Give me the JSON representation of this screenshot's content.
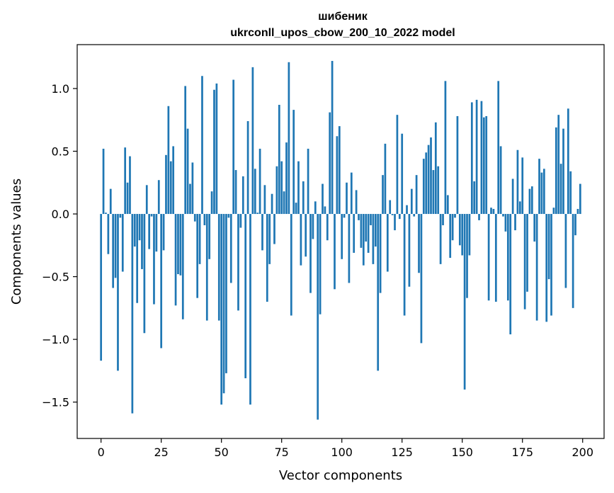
{
  "chart_data": {
    "type": "bar",
    "title_line1": "шибеник",
    "title_line2": "ukrconll_upos_cbow_200_10_2022 model",
    "xlabel": "Vector components",
    "ylabel": "Components values",
    "xlim": [
      -9.9,
      208.9
    ],
    "ylim": [
      -1.79,
      1.35
    ],
    "xticks": [
      0,
      25,
      50,
      75,
      100,
      125,
      150,
      175,
      200
    ],
    "xtick_labels": [
      "0",
      "25",
      "50",
      "75",
      "100",
      "125",
      "150",
      "175",
      "200"
    ],
    "yticks": [
      1.0,
      0.5,
      0.0,
      -0.5,
      -1.0,
      -1.5
    ],
    "ytick_labels": [
      "1.0",
      "0.5",
      "0.0",
      "−0.5",
      "−1.0",
      "−1.5"
    ],
    "bar_color": "#1f77b4",
    "bar_width": 0.8,
    "values": [
      -1.17,
      0.52,
      0.01,
      -0.32,
      0.2,
      -0.59,
      -0.51,
      -1.25,
      -0.03,
      -0.46,
      0.53,
      0.25,
      0.46,
      -1.59,
      -0.26,
      -0.71,
      -0.21,
      -0.44,
      -0.95,
      0.23,
      -0.28,
      -0.02,
      -0.72,
      -0.3,
      0.27,
      -1.07,
      -0.29,
      0.47,
      0.86,
      0.42,
      0.54,
      -0.73,
      -0.48,
      -0.49,
      -0.84,
      1.02,
      0.68,
      0.24,
      0.41,
      -0.06,
      -0.67,
      -0.4,
      1.1,
      -0.09,
      -0.85,
      -0.36,
      0.18,
      0.99,
      1.04,
      -0.85,
      -1.52,
      -1.43,
      -1.27,
      -0.03,
      -0.55,
      1.07,
      0.35,
      -0.77,
      -0.11,
      0.3,
      -1.31,
      0.74,
      -1.52,
      1.17,
      0.36,
      0.01,
      0.52,
      -0.29,
      0.23,
      -0.7,
      -0.4,
      0.16,
      -0.24,
      0.38,
      0.87,
      0.42,
      0.18,
      0.57,
      1.21,
      -0.81,
      0.83,
      0.09,
      0.42,
      -0.41,
      0.26,
      -0.34,
      0.52,
      -0.63,
      -0.2,
      0.1,
      -1.64,
      -0.8,
      0.24,
      0.06,
      -0.21,
      0.81,
      1.22,
      -0.6,
      0.62,
      0.7,
      -0.36,
      -0.03,
      0.25,
      -0.55,
      0.33,
      -0.31,
      0.19,
      -0.05,
      -0.27,
      -0.41,
      -0.22,
      -0.31,
      -0.09,
      -0.4,
      -0.26,
      -1.25,
      -0.63,
      0.31,
      0.56,
      -0.46,
      0.11,
      -0.01,
      -0.13,
      0.79,
      -0.04,
      0.64,
      -0.81,
      0.07,
      -0.58,
      0.2,
      -0.02,
      0.31,
      -0.47,
      -1.03,
      0.44,
      0.49,
      0.55,
      0.61,
      0.35,
      0.73,
      0.38,
      -0.4,
      -0.09,
      1.06,
      0.15,
      -0.35,
      -0.21,
      -0.03,
      0.78,
      -0.25,
      -0.33,
      -1.4,
      -0.67,
      -0.33,
      0.89,
      0.26,
      0.91,
      -0.05,
      0.9,
      0.77,
      0.78,
      -0.69,
      0.05,
      0.04,
      -0.7,
      1.06,
      0.54,
      -0.02,
      -0.14,
      -0.69,
      -0.96,
      0.28,
      -0.13,
      0.51,
      0.1,
      0.45,
      -0.76,
      -0.62,
      0.2,
      0.22,
      -0.22,
      -0.85,
      0.44,
      0.33,
      0.36,
      -0.86,
      -0.52,
      -0.81,
      0.05,
      0.69,
      0.79,
      0.4,
      0.68,
      -0.59,
      0.84,
      0.34,
      -0.75,
      -0.17,
      0.04,
      0.24
    ]
  }
}
